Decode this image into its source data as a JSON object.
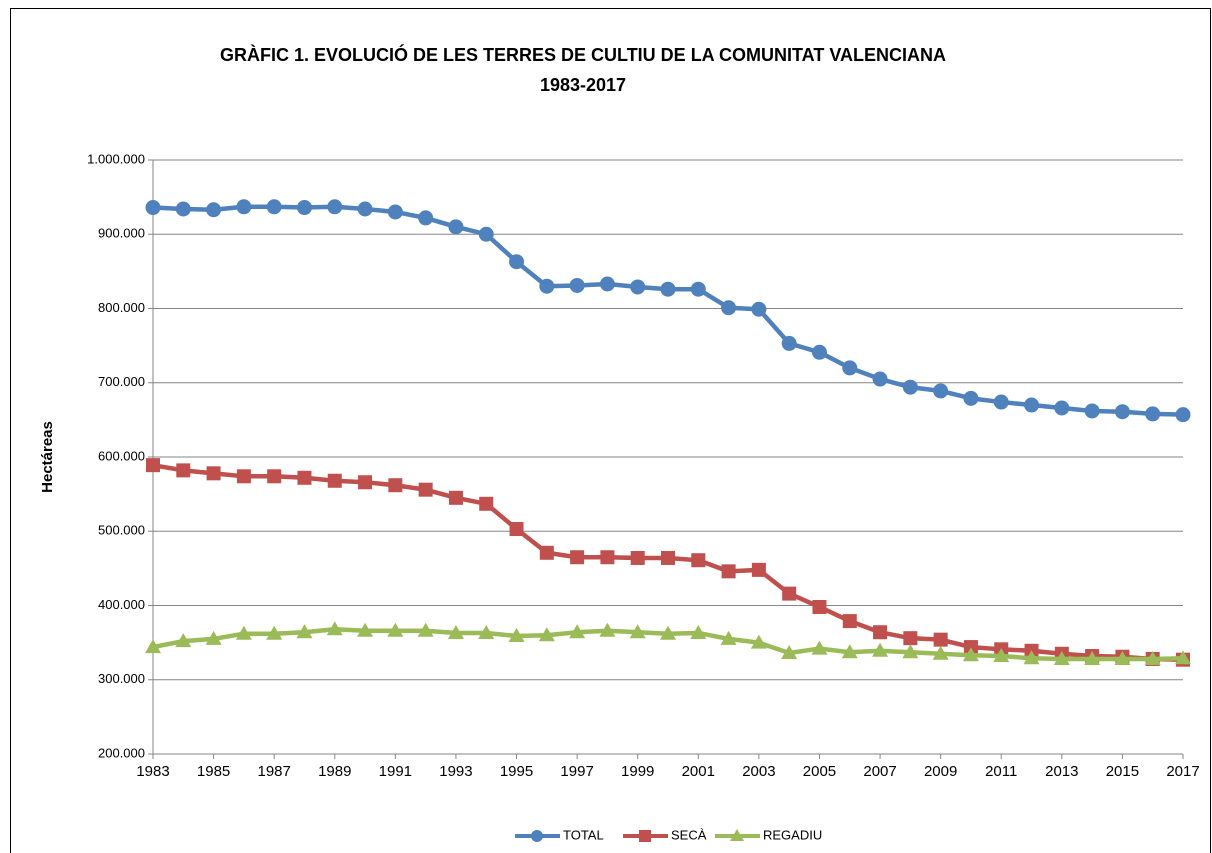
{
  "chart_data": {
    "type": "line",
    "title": [
      "GRÀFIC 1. EVOLUCIÓ DE LES TERRES DE CULTIU DE LA COMUNITAT VALENCIANA",
      "1983-2017"
    ],
    "ylabel": "Hectáreas",
    "x": [
      1983,
      1984,
      1985,
      1986,
      1987,
      1988,
      1989,
      1990,
      1991,
      1992,
      1993,
      1994,
      1995,
      1996,
      1997,
      1998,
      1999,
      2000,
      2001,
      2002,
      2003,
      2004,
      2005,
      2006,
      2007,
      2008,
      2009,
      2010,
      2011,
      2012,
      2013,
      2014,
      2015,
      2016,
      2017
    ],
    "xlim": [
      1983,
      2017
    ],
    "xticks": [
      1983,
      1985,
      1987,
      1989,
      1991,
      1993,
      1995,
      1997,
      1999,
      2001,
      2003,
      2005,
      2007,
      2009,
      2011,
      2013,
      2015,
      2017
    ],
    "ylim": [
      200000,
      1000000
    ],
    "yticks": [
      {
        "value": 200000,
        "label": "200.000"
      },
      {
        "value": 300000,
        "label": "300.000"
      },
      {
        "value": 400000,
        "label": "400.000"
      },
      {
        "value": 500000,
        "label": "500.000"
      },
      {
        "value": 600000,
        "label": "600.000"
      },
      {
        "value": 700000,
        "label": "700.000"
      },
      {
        "value": 800000,
        "label": "800.000"
      },
      {
        "value": 900000,
        "label": "900.000"
      },
      {
        "value": 1000000,
        "label": "1.000.000"
      }
    ],
    "grid": true,
    "legend": "bottom",
    "series": [
      {
        "name": "TOTAL",
        "color": "#4f81bd",
        "marker": "circle",
        "values": [
          936000,
          934000,
          933000,
          937000,
          937000,
          936000,
          937000,
          934000,
          930000,
          922000,
          910000,
          900000,
          863000,
          830000,
          831000,
          833000,
          829000,
          826000,
          826000,
          801000,
          799000,
          753000,
          741000,
          720000,
          705000,
          694000,
          689000,
          679000,
          674000,
          670000,
          666000,
          662000,
          661000,
          658000,
          657000
        ]
      },
      {
        "name": "SECÀ",
        "color": "#c0504d",
        "marker": "square",
        "values": [
          589000,
          582000,
          578000,
          574000,
          574000,
          572000,
          568000,
          566000,
          562000,
          556000,
          545000,
          537000,
          503000,
          471000,
          465000,
          465000,
          464000,
          464000,
          461000,
          446000,
          448000,
          416000,
          398000,
          379000,
          364000,
          356000,
          354000,
          344000,
          341000,
          339000,
          335000,
          332000,
          331000,
          328000,
          327000
        ]
      },
      {
        "name": "REGADIU",
        "color": "#9bbb59",
        "marker": "triangle",
        "values": [
          344000,
          352000,
          355000,
          362000,
          362000,
          364000,
          368000,
          366000,
          366000,
          366000,
          363000,
          363000,
          359000,
          360000,
          364000,
          366000,
          364000,
          362000,
          363000,
          355000,
          350000,
          336000,
          342000,
          337000,
          339000,
          337000,
          335000,
          333000,
          332000,
          329000,
          328000,
          328000,
          328000,
          328000,
          329000
        ]
      }
    ]
  }
}
